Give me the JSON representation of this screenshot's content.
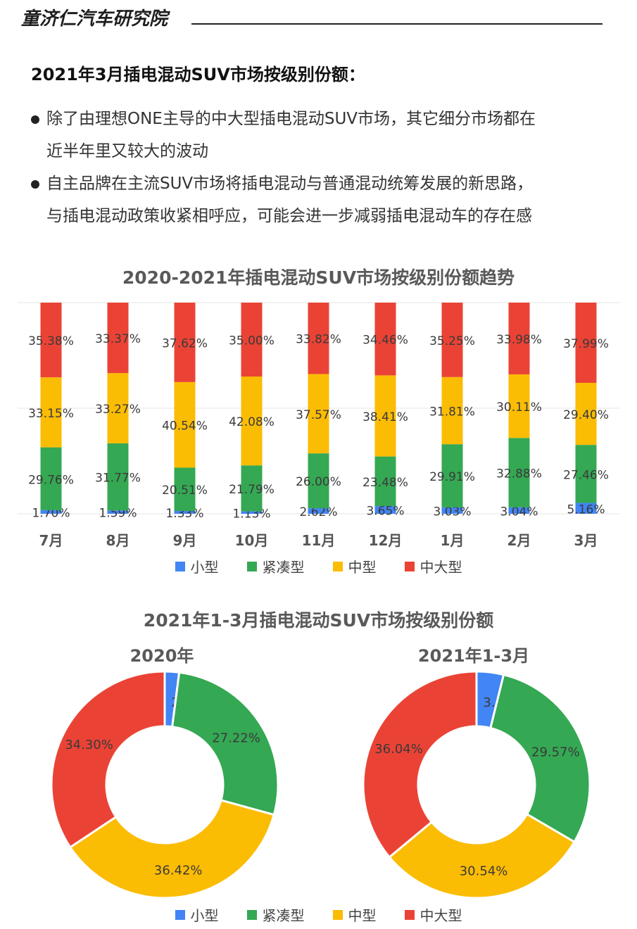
{
  "header": {
    "brand": "童济仁汽车研究院"
  },
  "headline": "2021年3月插电混动SUV市场按级别份额：",
  "bullets": [
    {
      "lines": [
        "除了由理想ONE主导的中大型插电混动SUV市场，其它细分市场都在",
        "近半年里又较大的波动"
      ]
    },
    {
      "lines": [
        "自主品牌在主流SUV市场将插电混动与普通混动统筹发展的新思路，",
        "与插电混动政策收紧相呼应，可能会进一步减弱插电混动车的存在感"
      ]
    }
  ],
  "colors": {
    "small": "#4285f4",
    "compact": "#34a853",
    "mid": "#fbbc04",
    "large": "#ea4335"
  },
  "legend": [
    "小型",
    "紧凑型",
    "中型",
    "中大型"
  ],
  "chart_data": [
    {
      "type": "bar",
      "stacked": true,
      "title": "2020-2021年插电混动SUV市场按级别份额趋势",
      "categories": [
        "7月",
        "8月",
        "9月",
        "10月",
        "11月",
        "12月",
        "1月",
        "2月",
        "3月"
      ],
      "series": [
        {
          "name": "小型",
          "values": [
            1.7,
            1.59,
            1.33,
            1.13,
            2.62,
            3.65,
            3.03,
            3.04,
            5.16
          ],
          "labels": [
            "1.70%",
            "1.59%",
            "1.33%",
            "1.13%",
            "2.62%",
            "3.65%",
            "3.03%",
            "3.04%",
            "5.16%"
          ]
        },
        {
          "name": "紧凑型",
          "values": [
            29.76,
            31.77,
            20.51,
            21.79,
            26.0,
            23.48,
            29.91,
            32.88,
            27.46
          ],
          "labels": [
            "29.76%",
            "31.77%",
            "20.51%",
            "21.79%",
            "26.00%",
            "23.48%",
            "29.91%",
            "32.88%",
            "27.46%"
          ]
        },
        {
          "name": "中型",
          "values": [
            33.15,
            33.27,
            40.54,
            42.08,
            37.57,
            38.41,
            31.81,
            30.11,
            29.4
          ],
          "labels": [
            "33.15%",
            "33.27%",
            "40.54%",
            "42.08%",
            "37.57%",
            "38.41%",
            "31.81%",
            "30.11%",
            "29.40%"
          ]
        },
        {
          "name": "中大型",
          "values": [
            35.38,
            33.37,
            37.62,
            35.0,
            33.82,
            34.46,
            35.25,
            33.98,
            37.99
          ],
          "labels": [
            "35.38%",
            "33.37%",
            "37.62%",
            "35.00%",
            "33.82%",
            "34.46%",
            "35.25%",
            "33.98%",
            "37.99%"
          ]
        }
      ],
      "ylim": [
        0,
        100
      ],
      "grid": true,
      "legend_position": "bottom"
    },
    {
      "type": "pie",
      "donut": true,
      "title": "2021年1-3月插电混动SUV市场按级别份额",
      "subtitle": "2020年",
      "categories": [
        "小型",
        "紧凑型",
        "中型",
        "中大型"
      ],
      "values": [
        2.05,
        27.22,
        36.42,
        34.3
      ],
      "labels": [
        "2.05%",
        "27.22%",
        "36.42%",
        "34.30%"
      ],
      "legend_position": "bottom"
    },
    {
      "type": "pie",
      "donut": true,
      "subtitle": "2021年1-3月",
      "categories": [
        "小型",
        "紧凑型",
        "中型",
        "中大型"
      ],
      "values": [
        3.85,
        29.57,
        30.54,
        36.04
      ],
      "labels": [
        "3.85%",
        "29.57%",
        "30.54%",
        "36.04%"
      ],
      "legend_position": "bottom"
    }
  ]
}
